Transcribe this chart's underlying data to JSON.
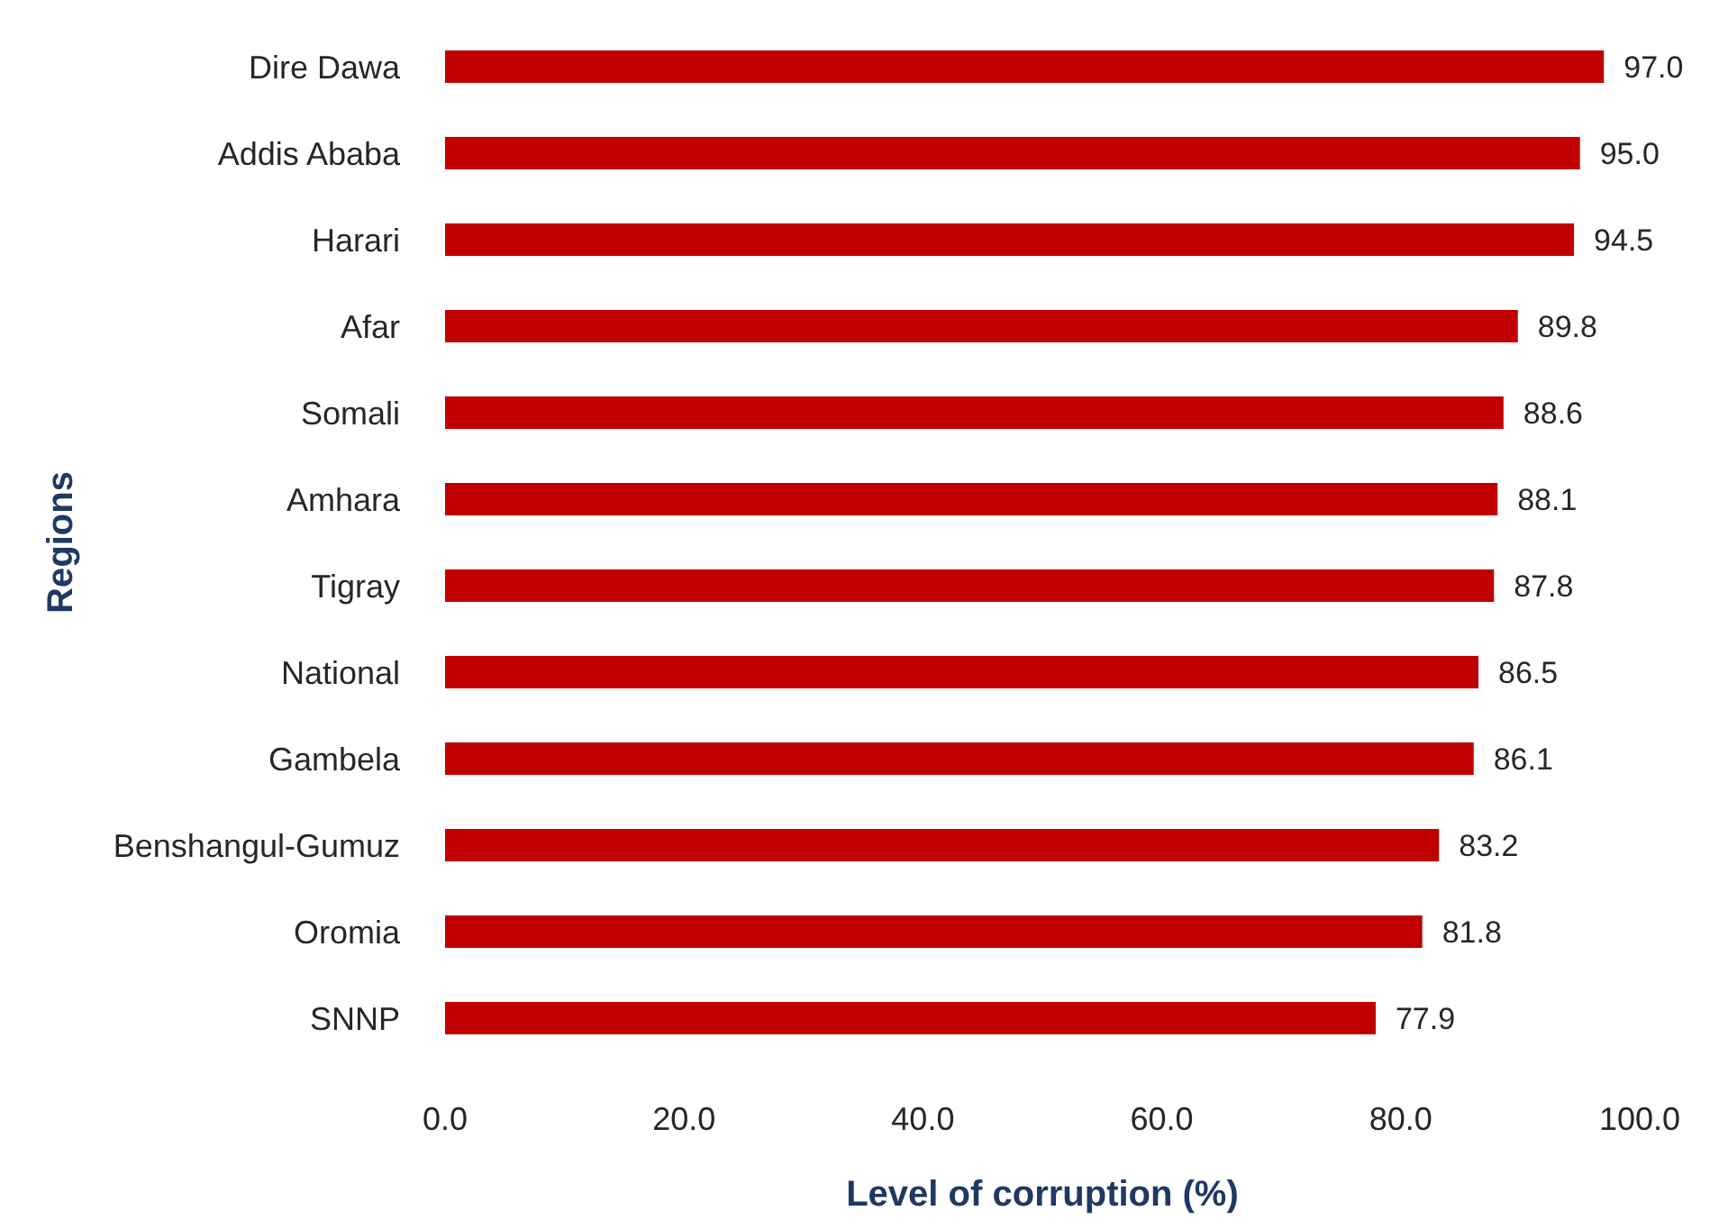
{
  "chart_data": {
    "type": "bar",
    "orientation": "horizontal",
    "xlabel": "Level of corruption (%)",
    "ylabel": "Regions",
    "categories": [
      "Dire Dawa",
      "Addis Ababa",
      "Harari",
      "Afar",
      "Somali",
      "Amhara",
      "Tigray",
      "National",
      "Gambela",
      "Benshangul-Gumuz",
      "Oromia",
      "SNNP"
    ],
    "values": [
      97.0,
      95.0,
      94.5,
      89.8,
      88.6,
      88.1,
      87.8,
      86.5,
      86.1,
      83.2,
      81.8,
      77.9
    ],
    "value_labels": [
      "97.0",
      "95.0",
      "94.5",
      "89.8",
      "88.6",
      "88.1",
      "87.8",
      "86.5",
      "86.1",
      "83.2",
      "81.8",
      "77.9"
    ],
    "color": "#c00000",
    "xlim": [
      0,
      100
    ],
    "xticks": [
      {
        "value": 0,
        "label": "0.0"
      },
      {
        "value": 20,
        "label": "20.0"
      },
      {
        "value": 40,
        "label": "40.0"
      },
      {
        "value": 60,
        "label": "60.0"
      },
      {
        "value": 80,
        "label": "80.0"
      },
      {
        "value": 100,
        "label": "100.0"
      }
    ]
  }
}
